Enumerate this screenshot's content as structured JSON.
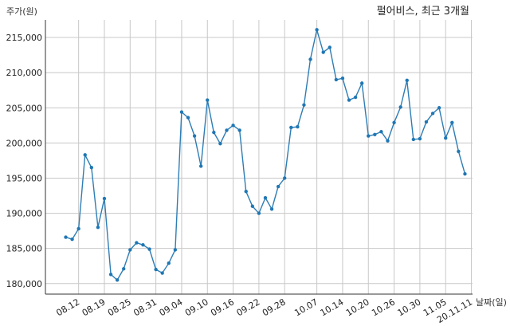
{
  "chart_data": {
    "type": "line",
    "title": "펄어비스, 최근 3개월",
    "ylabel": "주가(원)",
    "xlabel": "날짜(일)",
    "ylim": [
      178500,
      217500
    ],
    "yticks": [
      180000,
      185000,
      190000,
      195000,
      200000,
      205000,
      210000,
      215000
    ],
    "ytick_labels": [
      "180,000",
      "185,000",
      "190,000",
      "195,000",
      "200,000",
      "205,000",
      "210,000",
      "215,000"
    ],
    "xtick_labels": [
      "08.12",
      "08.19",
      "08.25",
      "08.31",
      "09.04",
      "09.10",
      "09.16",
      "09.22",
      "09.28",
      "10.07",
      "10.14",
      "10.20",
      "10.26",
      "10.30",
      "11.05",
      "20.11.11"
    ],
    "xtick_index": [
      2,
      6,
      10,
      14,
      18,
      22,
      26,
      30,
      34,
      39,
      43,
      47,
      51,
      55,
      59,
      63
    ],
    "grid": true,
    "series": [
      {
        "values": [
          186600,
          186300,
          187800,
          198300,
          196500,
          188000,
          192100,
          181300,
          180500,
          182100,
          184800,
          185800,
          185500,
          184900,
          182000,
          181500,
          182900,
          184800,
          204400,
          203600,
          201000,
          196700,
          206100,
          201500,
          199900,
          201800,
          202500,
          201800,
          193100,
          191000,
          190000,
          192200,
          190600,
          193800,
          195000,
          202200,
          202300,
          205400,
          211900,
          216100,
          212900,
          213600,
          209000,
          209200,
          206100,
          206500,
          208500,
          201000,
          201200,
          201600,
          200300,
          202900,
          205100,
          208900,
          200500,
          200600,
          203000,
          204200,
          205000,
          200700,
          202900,
          198800,
          195600
        ]
      }
    ]
  }
}
